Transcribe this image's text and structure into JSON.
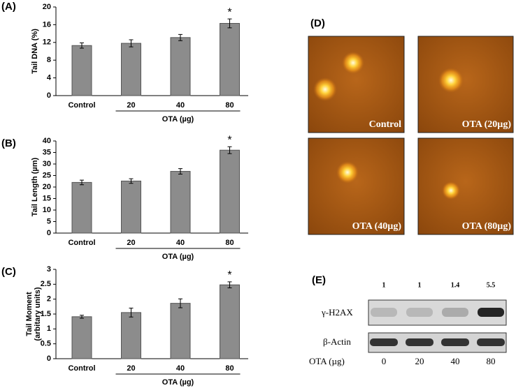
{
  "chart_data": [
    {
      "type": "bar",
      "panel": "(A)",
      "ylabel": "Tail DNA (%)",
      "xlabel": "OTA (µg)",
      "categories": [
        "Control",
        "20",
        "40",
        "80"
      ],
      "values": [
        11.3,
        11.8,
        13.1,
        16.3
      ],
      "errors": [
        0.6,
        0.8,
        0.7,
        1.0
      ],
      "significance": [
        null,
        null,
        null,
        "*"
      ],
      "color": "#8c8c8c",
      "ylim": [
        0,
        20
      ],
      "yticks": [
        0,
        4,
        8,
        12,
        16,
        20
      ]
    },
    {
      "type": "bar",
      "panel": "(B)",
      "ylabel": "Tail Length (µm)",
      "xlabel": "OTA (µg)",
      "categories": [
        "Control",
        "20",
        "40",
        "80"
      ],
      "values": [
        22,
        22.6,
        26.8,
        36
      ],
      "errors": [
        1,
        1,
        1.2,
        1.5
      ],
      "significance": [
        null,
        null,
        null,
        "*"
      ],
      "color": "#8c8c8c",
      "ylim": [
        0,
        40
      ],
      "yticks": [
        0,
        5,
        10,
        15,
        20,
        25,
        30,
        35,
        40
      ]
    },
    {
      "type": "bar",
      "panel": "(C)",
      "ylabel": [
        "Tail Moment",
        "(arbitary units)"
      ],
      "xlabel": "OTA (µg)",
      "categories": [
        "Control",
        "20",
        "40",
        "80"
      ],
      "values": [
        1.41,
        1.55,
        1.86,
        2.48
      ],
      "errors": [
        0.05,
        0.15,
        0.15,
        0.1
      ],
      "significance": [
        null,
        null,
        null,
        "*"
      ],
      "color": "#8c8c8c",
      "ylim": [
        0,
        3
      ],
      "yticks": [
        0,
        0.5,
        1,
        1.5,
        2,
        2.5,
        3
      ]
    }
  ],
  "panel_d": {
    "panel": "(D)",
    "images": [
      "Control",
      "OTA (20µg)",
      "OTA (40µg)",
      "OTA (80µg)"
    ]
  },
  "panel_e": {
    "panel": "(E)",
    "ratios": [
      1,
      1,
      1.4,
      5.5
    ],
    "rows": [
      "γ-H2AX",
      "β-Actin"
    ],
    "dose_label": "OTA (µg)",
    "doses": [
      0,
      20,
      40,
      80
    ]
  }
}
